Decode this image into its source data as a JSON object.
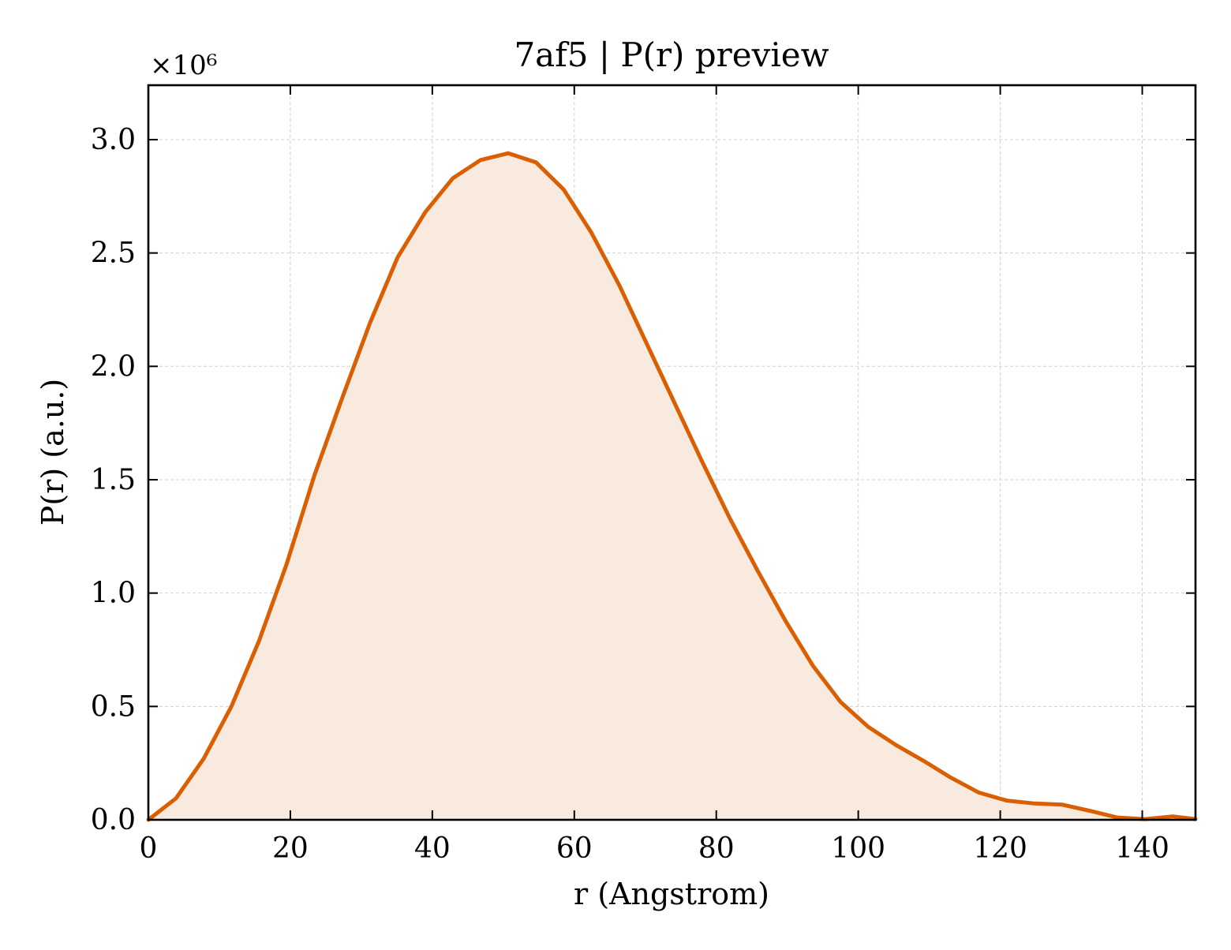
{
  "chart_data": {
    "type": "area",
    "title": "7af5 | P(r) preview",
    "xlabel": "r (Angstrom)",
    "ylabel": "P(r) (a.u.)",
    "y_scale_label": "×10⁶",
    "y_multiplier": 1000000,
    "xlim": [
      0,
      147.5
    ],
    "ylim": [
      0,
      3.24
    ],
    "xticks": [
      0,
      20,
      40,
      60,
      80,
      100,
      120,
      140
    ],
    "xtick_labels": [
      "0",
      "20",
      "40",
      "60",
      "80",
      "100",
      "120",
      "140"
    ],
    "yticks": [
      0,
      0.5,
      1.0,
      1.5,
      2.0,
      2.5,
      3.0
    ],
    "ytick_labels": [
      "0.0",
      "0.5",
      "1.0",
      "1.5",
      "2.0",
      "2.5",
      "3.0"
    ],
    "grid": true,
    "legend": "none",
    "series": [
      {
        "x": [
          0,
          3.9,
          7.8,
          11.7,
          15.6,
          19.5,
          23.4,
          27.3,
          31.2,
          35.1,
          39,
          42.9,
          46.8,
          50.7,
          54.6,
          58.5,
          62.4,
          66.3,
          70.2,
          74.1,
          78,
          81.9,
          85.8,
          89.7,
          93.6,
          97.5,
          101.4,
          105.3,
          109.2,
          113.1,
          117,
          120.9,
          124.8,
          128.7,
          132.6,
          136.5,
          140.4,
          144.3,
          147.5
        ],
        "values": [
          0.0,
          0.095,
          0.27,
          0.5,
          0.79,
          1.13,
          1.52,
          1.86,
          2.19,
          2.48,
          2.68,
          2.83,
          2.91,
          2.94,
          2.9,
          2.78,
          2.59,
          2.36,
          2.1,
          1.84,
          1.58,
          1.33,
          1.1,
          0.88,
          0.68,
          0.52,
          0.41,
          0.33,
          0.26,
          0.185,
          0.12,
          0.085,
          0.072,
          0.067,
          0.04,
          0.01,
          0.003,
          0.015,
          0.003
        ]
      }
    ],
    "line_color": "#d95f02",
    "fill_color": "#f8eadf"
  }
}
